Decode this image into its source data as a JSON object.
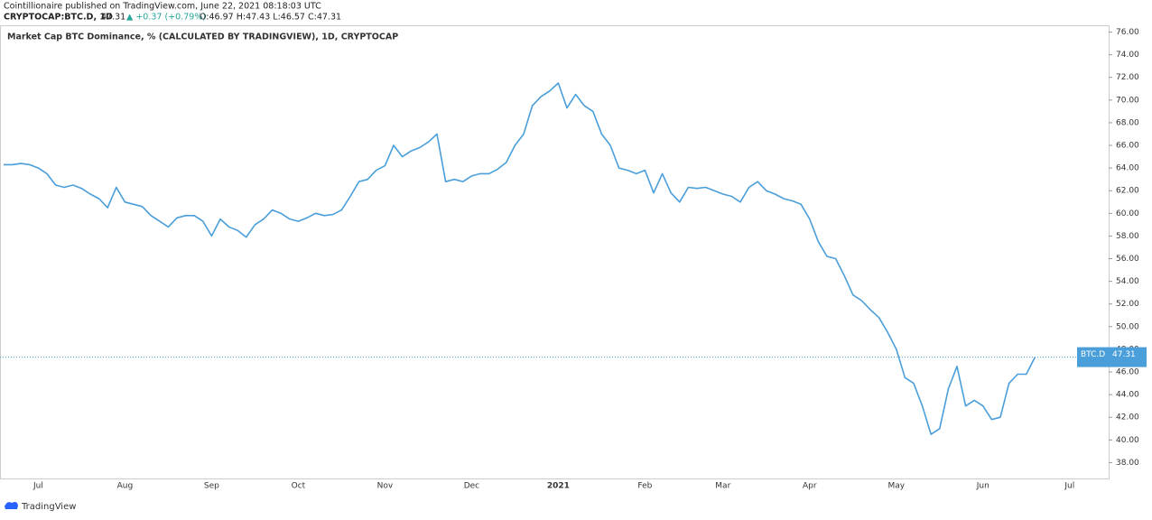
{
  "header": {
    "published": "Cointillionaire published on TradingView.com, June 22, 2021 08:18:03 UTC",
    "symbol": "CRYPTOCAP:BTC.D, 1D",
    "last": "47.31",
    "change": "▲ +0.37 (+0.79%)",
    "ohlc": "O:46.97 H:47.43 L:46.57 C:47.31"
  },
  "footer": {
    "brand": "TradingView"
  },
  "chart_data": {
    "type": "line",
    "title": "Market Cap BTC Dominance, % (CALCULATED BY TRADINGVIEW), 1D, CRYPTOCAP",
    "categories": [
      null,
      null,
      null,
      null,
      "Jul",
      null,
      null,
      null,
      null,
      null,
      null,
      null,
      null,
      null,
      "Aug",
      null,
      null,
      null,
      null,
      null,
      null,
      null,
      null,
      null,
      "Sep",
      null,
      null,
      null,
      null,
      null,
      null,
      null,
      null,
      null,
      "Oct",
      null,
      null,
      null,
      null,
      null,
      null,
      null,
      null,
      null,
      "Nov",
      null,
      null,
      null,
      null,
      null,
      null,
      null,
      null,
      null,
      "Dec",
      null,
      null,
      null,
      null,
      null,
      null,
      null,
      null,
      null,
      "2021",
      null,
      null,
      null,
      null,
      null,
      null,
      null,
      null,
      null,
      "Feb",
      null,
      null,
      null,
      null,
      null,
      null,
      null,
      null,
      "Mar",
      null,
      null,
      null,
      null,
      null,
      null,
      null,
      null,
      null,
      "Apr",
      null,
      null,
      null,
      null,
      null,
      null,
      null,
      null,
      null,
      "May",
      null,
      null,
      null,
      null,
      null,
      null,
      null,
      null,
      null,
      "Jun",
      null,
      null,
      null,
      null,
      null,
      null,
      null,
      null,
      null,
      "Jul"
    ],
    "series": [
      {
        "name": "BTC.D",
        "color": "#4a9ed9",
        "values": [
          64.3,
          64.3,
          64.4,
          64.3,
          64.0,
          63.5,
          62.5,
          62.3,
          62.5,
          62.2,
          61.7,
          61.3,
          60.5,
          62.3,
          61.0,
          60.8,
          60.6,
          59.8,
          59.3,
          58.8,
          59.6,
          59.8,
          59.8,
          59.3,
          58.0,
          59.5,
          58.8,
          58.5,
          57.9,
          59.0,
          59.5,
          60.3,
          60.0,
          59.5,
          59.3,
          59.6,
          60.0,
          59.8,
          59.9,
          60.3,
          61.5,
          62.8,
          63.0,
          63.8,
          64.2,
          66.0,
          65.0,
          65.5,
          65.8,
          66.3,
          67.0,
          62.8,
          63.0,
          62.8,
          63.3,
          63.5,
          63.5,
          63.9,
          64.5,
          66.0,
          67.0,
          69.5,
          70.3,
          70.8,
          71.5,
          69.3,
          70.5,
          69.5,
          69.0,
          67.0,
          66.0,
          64.0,
          63.8,
          63.5,
          63.8,
          61.8,
          63.5,
          61.8,
          61.0,
          62.3,
          62.2,
          62.3,
          62.0,
          61.7,
          61.5,
          61.0,
          62.3,
          62.8,
          62.0,
          61.7,
          61.3,
          61.1,
          60.8,
          59.5,
          57.5,
          56.2,
          56.0,
          54.5,
          52.8,
          52.3,
          51.5,
          50.8,
          49.5,
          48.0,
          45.5,
          45.0,
          43.0,
          40.5,
          41.0,
          44.5,
          46.5,
          43.0,
          43.5,
          43.0,
          41.8,
          42.0,
          45.0,
          45.8,
          45.8,
          47.31,
          null,
          null,
          null,
          null
        ]
      }
    ],
    "ylim": [
      36.6,
      76.6
    ],
    "yticks": [
      {
        "value": 38,
        "label": "38.00"
      },
      {
        "value": 40,
        "label": "40.00"
      },
      {
        "value": 42,
        "label": "42.00"
      },
      {
        "value": 44,
        "label": "44.00"
      },
      {
        "value": 46,
        "label": "46.00"
      },
      {
        "value": 48,
        "label": "48.00"
      },
      {
        "value": 50,
        "label": "50.00"
      },
      {
        "value": 52,
        "label": "52.00"
      },
      {
        "value": 54,
        "label": "54.00"
      },
      {
        "value": 56,
        "label": "56.00"
      },
      {
        "value": 58,
        "label": "58.00"
      },
      {
        "value": 60,
        "label": "60.00"
      },
      {
        "value": 62,
        "label": "62.00"
      },
      {
        "value": 64,
        "label": "64.00"
      },
      {
        "value": 66,
        "label": "66.00"
      },
      {
        "value": 68,
        "label": "68.00"
      },
      {
        "value": 70,
        "label": "70.00"
      },
      {
        "value": 72,
        "label": "72.00"
      },
      {
        "value": 74,
        "label": "74.00"
      },
      {
        "value": 76,
        "label": "76.00"
      }
    ],
    "grid": false
  }
}
